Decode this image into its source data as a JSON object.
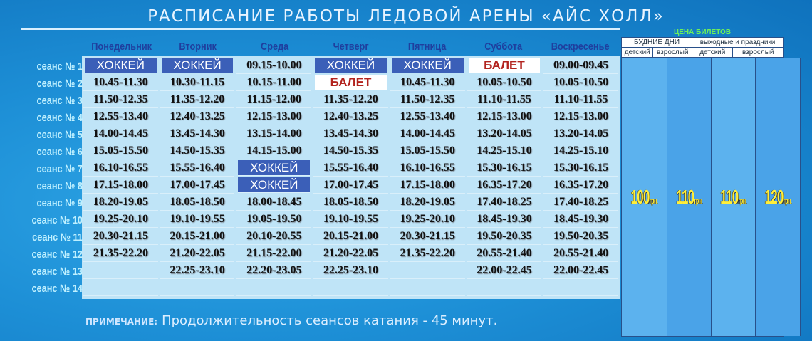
{
  "title": "РАСПИСАНИЕ РАБОТЫ ЛЕДОВОЙ АРЕНЫ «АЙС ХОЛЛ»",
  "days": [
    "Понедельник",
    "Вторник",
    "Среда",
    "Четверг",
    "Пятница",
    "Суббота",
    "Воскресенье"
  ],
  "sessions": [
    "сеанс № 1",
    "сеанс № 2",
    "сеанс № 3",
    "сеанс № 4",
    "сеанс № 5",
    "сеанс № 6",
    "сеанс № 7",
    "сеанс № 8",
    "сеанс № 9",
    "сеанс № 10",
    "сеанс № 11",
    "сеанс № 12",
    "сеанс № 13",
    "сеанс № 14"
  ],
  "schedule": [
    [
      "ХОККЕЙ",
      "10.45-11.30",
      "11.50-12.35",
      "12.55-13.40",
      "14.00-14.45",
      "15.05-15.50",
      "16.10-16.55",
      "17.15-18.00",
      "18.20-19.05",
      "19.25-20.10",
      "20.30-21.15",
      "21.35-22.20",
      "",
      ""
    ],
    [
      "ХОККЕЙ",
      "10.30-11.15",
      "11.35-12.20",
      "12.40-13.25",
      "13.45-14.30",
      "14.50-15.35",
      "15.55-16.40",
      "17.00-17.45",
      "18.05-18.50",
      "19.10-19.55",
      "20.15-21.00",
      "21.20-22.05",
      "22.25-23.10",
      ""
    ],
    [
      "09.15-10.00",
      "10.15-11.00",
      "11.15-12.00",
      "12.15-13.00",
      "13.15-14.00",
      "14.15-15.00",
      "ХОККЕЙ",
      "ХОККЕЙ",
      "18.00-18.45",
      "19.05-19.50",
      "20.10-20.55",
      "21.15-22.00",
      "22.20-23.05",
      ""
    ],
    [
      "ХОККЕЙ",
      "БАЛЕТ",
      "11.35-12.20",
      "12.40-13.25",
      "13.45-14.30",
      "14.50-15.35",
      "15.55-16.40",
      "17.00-17.45",
      "18.05-18.50",
      "19.10-19.55",
      "20.15-21.00",
      "21.20-22.05",
      "22.25-23.10",
      ""
    ],
    [
      "ХОККЕЙ",
      "10.45-11.30",
      "11.50-12.35",
      "12.55-13.40",
      "14.00-14.45",
      "15.05-15.50",
      "16.10-16.55",
      "17.15-18.00",
      "18.20-19.05",
      "19.25-20.10",
      "20.30-21.15",
      "21.35-22.20",
      "",
      ""
    ],
    [
      "БАЛЕТ",
      "10.05-10.50",
      "11.10-11.55",
      "12.15-13.00",
      "13.20-14.05",
      "14.25-15.10",
      "15.30-16.15",
      "16.35-17.20",
      "17.40-18.25",
      "18.45-19.30",
      "19.50-20.35",
      "20.55-21.40",
      "22.00-22.45",
      ""
    ],
    [
      "09.00-09.45",
      "10.05-10.50",
      "11.10-11.55",
      "12.15-13.00",
      "13.20-14.05",
      "14.25-15.10",
      "15.30-16.15",
      "16.35-17.20",
      "17.40-18.25",
      "18.45-19.30",
      "19.50-20.35",
      "20.55-21.40",
      "22.00-22.45",
      ""
    ]
  ],
  "prices": {
    "header": "ЦЕНА БИЛЕТОВ",
    "weekdays": "БУДНИЕ ДНИ",
    "weekends": "выходные и праздники",
    "child": "детский",
    "adult": "взрослый",
    "values": [
      "100",
      "110",
      "110",
      "120"
    ],
    "unit": "грн."
  },
  "note": {
    "label": "ПРИМЕЧАНИЕ:",
    "text": "Продолжительность сеансов катания - 45 минут."
  },
  "colors": {
    "hockey": "#3b5fb8",
    "ballet": "#b2231e",
    "background": "#1d8fd6"
  }
}
